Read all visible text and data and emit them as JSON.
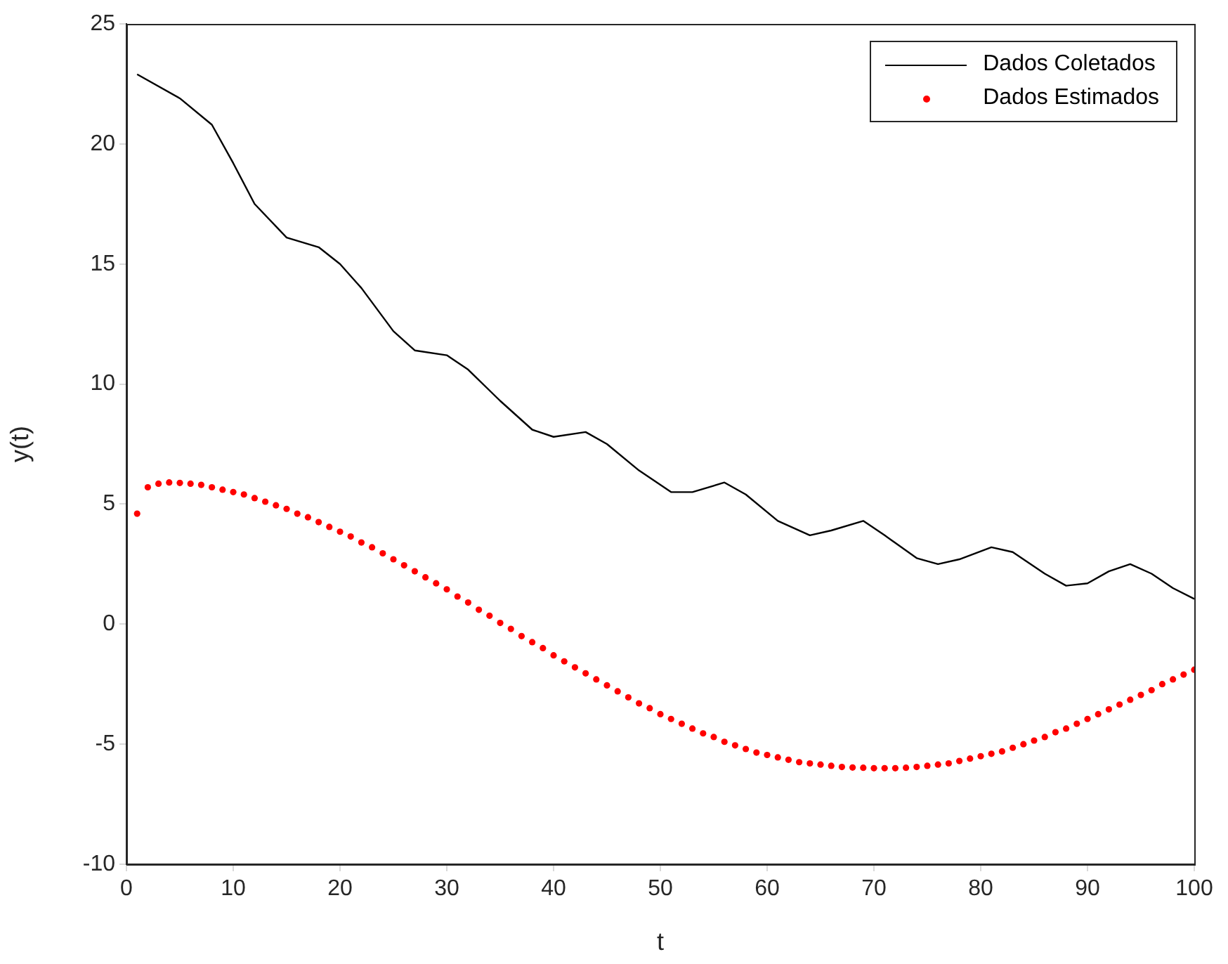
{
  "chart_data": {
    "type": "line",
    "xlabel": "t",
    "ylabel": "y(t)",
    "xlim": [
      0,
      100
    ],
    "xticks": [
      0,
      10,
      20,
      30,
      40,
      50,
      60,
      70,
      80,
      90,
      100
    ],
    "ylim": [
      -10,
      25
    ],
    "yticks": [
      -10,
      -5,
      0,
      5,
      10,
      15,
      20,
      25
    ],
    "grid": false,
    "legend": "top right",
    "series": [
      {
        "name": "Dados Coletados",
        "color": "#000000",
        "marker": "none",
        "line_style": "solid",
        "x": [
          1,
          5,
          8,
          10,
          12,
          15,
          18,
          20,
          22,
          25,
          27,
          30,
          32,
          35,
          38,
          40,
          43,
          45,
          48,
          51,
          53,
          56,
          58,
          61,
          64,
          66,
          69,
          71,
          74,
          76,
          78,
          81,
          83,
          86,
          88,
          90,
          92,
          94,
          96,
          98,
          100
        ],
        "values": [
          22.9,
          21.9,
          20.8,
          19.2,
          17.5,
          16.1,
          15.7,
          15.0,
          14.0,
          12.2,
          11.4,
          11.2,
          10.6,
          9.3,
          8.1,
          7.8,
          8.0,
          7.5,
          6.4,
          5.5,
          5.5,
          5.9,
          5.4,
          4.3,
          3.7,
          3.9,
          4.3,
          3.7,
          2.75,
          2.5,
          2.7,
          3.2,
          3.0,
          2.1,
          1.6,
          1.7,
          2.2,
          2.5,
          2.1,
          1.5,
          1.05
        ]
      },
      {
        "name": "Dados Estimados",
        "type": "scatter",
        "color": "#ff0000",
        "marker": "circle",
        "x": [
          1,
          2,
          3,
          4,
          5,
          6,
          7,
          8,
          9,
          10,
          11,
          12,
          13,
          14,
          15,
          16,
          17,
          18,
          19,
          20,
          21,
          22,
          23,
          24,
          25,
          26,
          27,
          28,
          29,
          30,
          31,
          32,
          33,
          34,
          35,
          36,
          37,
          38,
          39,
          40,
          41,
          42,
          43,
          44,
          45,
          46,
          47,
          48,
          49,
          50,
          51,
          52,
          53,
          54,
          55,
          56,
          57,
          58,
          59,
          60,
          61,
          62,
          63,
          64,
          65,
          66,
          67,
          68,
          69,
          70,
          71,
          72,
          73,
          74,
          75,
          76,
          77,
          78,
          79,
          80,
          81,
          82,
          83,
          84,
          85,
          86,
          87,
          88,
          89,
          90,
          91,
          92,
          93,
          94,
          95,
          96,
          97,
          98,
          99,
          100
        ],
        "values": [
          4.6,
          5.7,
          5.85,
          5.9,
          5.88,
          5.85,
          5.8,
          5.7,
          5.6,
          5.5,
          5.4,
          5.25,
          5.1,
          4.95,
          4.8,
          4.6,
          4.45,
          4.25,
          4.05,
          3.85,
          3.65,
          3.4,
          3.2,
          2.95,
          2.7,
          2.45,
          2.2,
          1.95,
          1.7,
          1.45,
          1.15,
          0.9,
          0.6,
          0.35,
          0.05,
          -0.2,
          -0.5,
          -0.75,
          -1.0,
          -1.3,
          -1.55,
          -1.8,
          -2.05,
          -2.3,
          -2.55,
          -2.8,
          -3.05,
          -3.3,
          -3.5,
          -3.75,
          -3.95,
          -4.15,
          -4.35,
          -4.55,
          -4.7,
          -4.9,
          -5.05,
          -5.2,
          -5.35,
          -5.45,
          -5.55,
          -5.65,
          -5.75,
          -5.8,
          -5.85,
          -5.9,
          -5.95,
          -5.97,
          -5.98,
          -6.0,
          -6.0,
          -6.0,
          -5.98,
          -5.95,
          -5.9,
          -5.85,
          -5.8,
          -5.7,
          -5.6,
          -5.5,
          -5.4,
          -5.3,
          -5.15,
          -5.0,
          -4.85,
          -4.7,
          -4.5,
          -4.35,
          -4.15,
          -3.95,
          -3.75,
          -3.55,
          -3.35,
          -3.15,
          -2.95,
          -2.75,
          -2.5,
          -2.3,
          -2.1,
          -1.9
        ]
      }
    ]
  }
}
